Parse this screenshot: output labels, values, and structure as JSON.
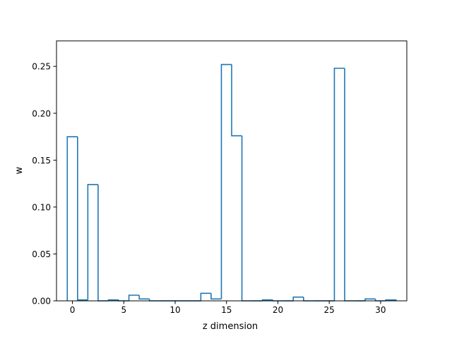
{
  "chart_data": {
    "type": "bar",
    "style": "step",
    "title": "",
    "xlabel": "z dimension",
    "ylabel": "w",
    "x": [
      0,
      1,
      2,
      3,
      4,
      5,
      6,
      7,
      8,
      9,
      10,
      11,
      12,
      13,
      14,
      15,
      16,
      17,
      18,
      19,
      20,
      21,
      22,
      23,
      24,
      25,
      26,
      27,
      28,
      29,
      30,
      31
    ],
    "values": [
      0.175,
      0.001,
      0.124,
      0.0,
      0.001,
      0.0,
      0.006,
      0.002,
      0.0,
      0.0,
      0.0,
      0.0,
      0.0,
      0.008,
      0.002,
      0.252,
      0.176,
      0.0,
      0.0,
      0.001,
      0.0,
      0.0,
      0.004,
      0.0,
      0.0,
      0.0,
      0.248,
      0.0,
      0.0,
      0.002,
      0.0,
      0.001
    ],
    "xlim": [
      -1.55,
      32.55
    ],
    "ylim": [
      0,
      0.2772
    ],
    "xticks": [
      0,
      5,
      10,
      15,
      20,
      25,
      30
    ],
    "xtick_labels": [
      "0",
      "5",
      "10",
      "15",
      "20",
      "25",
      "30"
    ],
    "yticks": [
      0.0,
      0.05,
      0.1,
      0.15,
      0.2,
      0.25
    ],
    "ytick_labels": [
      "0.00",
      "0.05",
      "0.10",
      "0.15",
      "0.20",
      "0.25"
    ],
    "grid": false,
    "colors": {
      "line": "#1f77b4",
      "axes": "#000000"
    }
  }
}
